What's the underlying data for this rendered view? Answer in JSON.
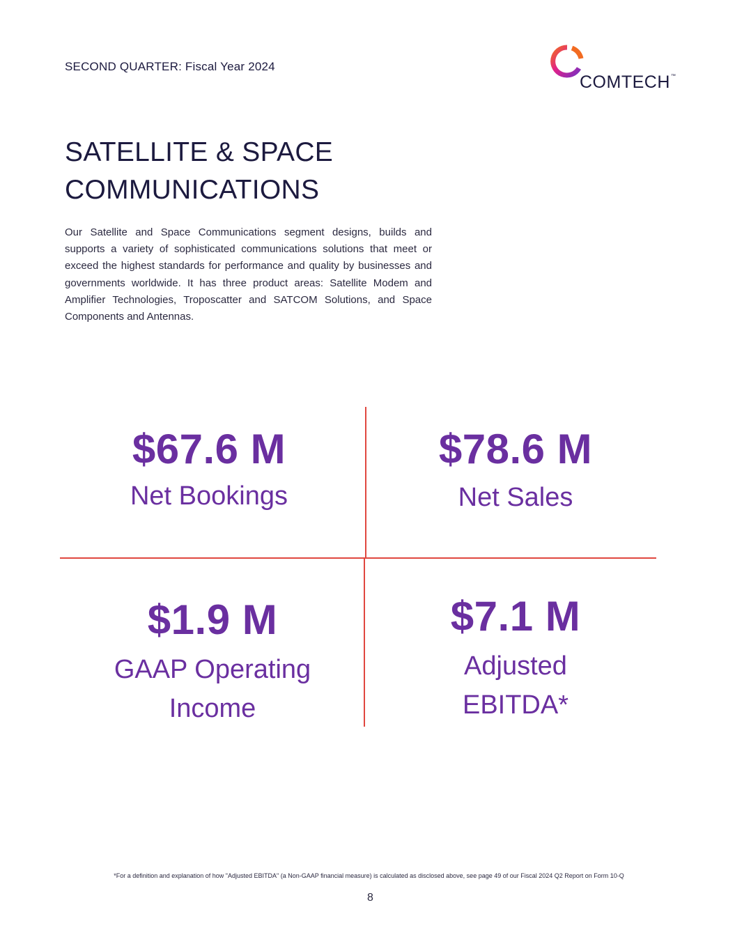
{
  "header": {
    "label": "SECOND QUARTER: Fiscal Year 2024"
  },
  "logo": {
    "text": "COMTECH",
    "trademark": "™",
    "colors": {
      "orange": "#f26b21",
      "magenta": "#e0218a",
      "purple": "#7b2fbf"
    }
  },
  "section": {
    "title_line1": "SATELLITE & SPACE",
    "title_line2": "COMMUNICATIONS",
    "description": "Our Satellite and Space Communications segment designs, builds and supports a variety of sophisticated communications solutions that meet or exceed the highest standards for performance and quality by businesses and governments worldwide. It has three product areas: Satellite Modem and Amplifier Technologies, Troposcatter and SATCOM Solutions, and Space Components and Antennas."
  },
  "metrics": [
    {
      "value": "$67.6 M",
      "label_line1": "Net Bookings",
      "label_line2": ""
    },
    {
      "value": "$78.6 M",
      "label_line1": "Net Sales",
      "label_line2": ""
    },
    {
      "value": "$1.9 M",
      "label_line1": "GAAP Operating",
      "label_line2": "Income"
    },
    {
      "value": "$7.1 M",
      "label_line1": "Adjusted",
      "label_line2": "EBITDA*"
    }
  ],
  "colors": {
    "accent_purple": "#6a2fa0",
    "divider_red": "#e0473f",
    "text_navy": "#1c1a3f"
  },
  "footnote": "*For a definition and explanation of how \"Adjusted EBITDA\" (a Non-GAAP financial measure) is calculated as disclosed above, see page 49 of our Fiscal 2024 Q2 Report on Form 10-Q",
  "page_number": "8"
}
